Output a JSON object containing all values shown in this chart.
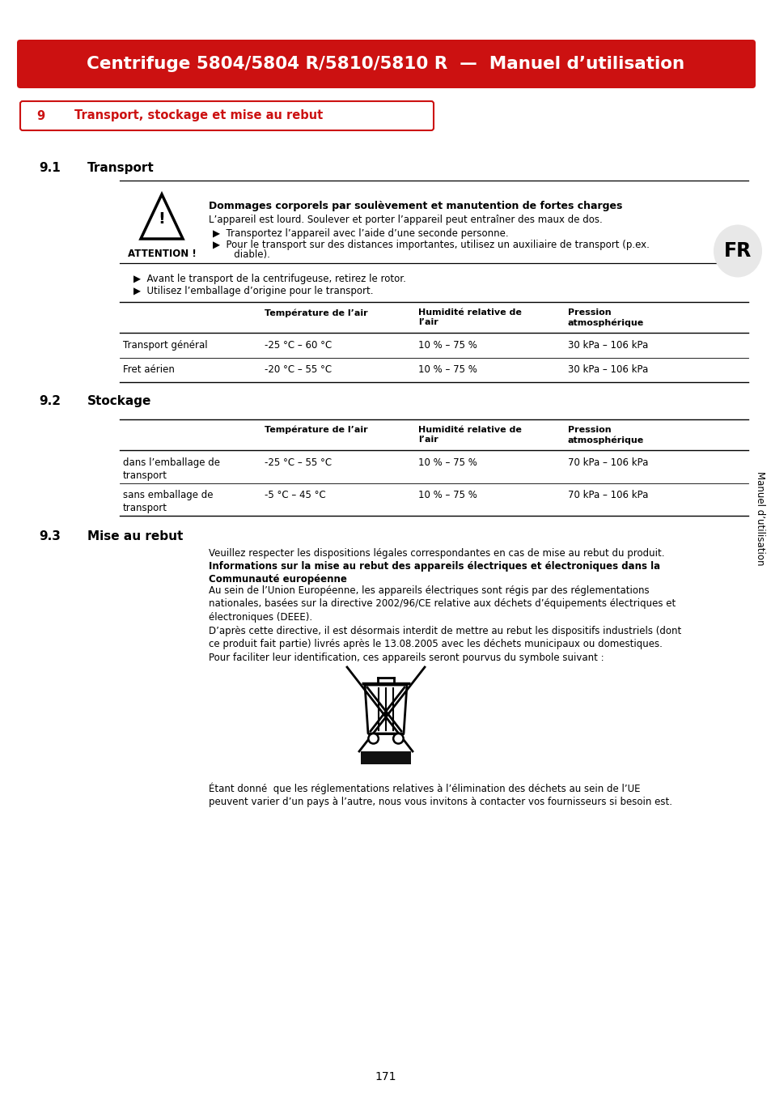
{
  "header_text": "Centrifuge 5804/5804 R/5810/5810 R  —  Manuel d’utilisation",
  "header_bg": "#cc1111",
  "header_text_color": "#ffffff",
  "section_badge_text": "9",
  "section_title": "Transport, stockage et mise au rebut",
  "section_badge_color": "#cc1111",
  "sub91": "9.1",
  "sub91_title": "Transport",
  "attention_title": "Dommages corporels par soulèvement et manutention de fortes charges",
  "attention_body1": "L’appareil est lourd. Soulever et porter l’appareil peut entraîner des maux de dos.",
  "attention_bullet1": "Transportez l’appareil avec l’aide d’une seconde personne.",
  "attention_bullet2a": "Pour le transport sur des distances importantes, utilisez un auxiliaire de transport (p.ex.",
  "attention_bullet2b": "   diable).",
  "attention_label": "ATTENTION !",
  "bullet_transport1": "Avant le transport de la centrifugeuse, retirez le rotor.",
  "bullet_transport2": "Utilisez l’emballage d’origine pour le transport.",
  "table1_headers": [
    "",
    "Température de l’air",
    "Humidité relative de\nl’air",
    "Pression\natmosphérique"
  ],
  "table1_rows": [
    [
      "Transport général",
      "-25 °C – 60 °C",
      "10 % – 75 %",
      "30 kPa – 106 kPa"
    ],
    [
      "Fret aérien",
      "-20 °C – 55 °C",
      "10 % – 75 %",
      "30 kPa – 106 kPa"
    ]
  ],
  "sub92": "9.2",
  "sub92_title": "Stockage",
  "table2_headers": [
    "",
    "Température de l’air",
    "Humidité relative de\nl’air",
    "Pression\natmosphérique"
  ],
  "table2_rows": [
    [
      "dans l’emballage de\ntransport",
      "-25 °C – 55 °C",
      "10 % – 75 %",
      "70 kPa – 106 kPa"
    ],
    [
      "sans emballage de\ntransport",
      "-5 °C – 45 °C",
      "10 % – 75 %",
      "70 kPa – 106 kPa"
    ]
  ],
  "sub93": "9.3",
  "sub93_title": "Mise au rebut",
  "mise_para1": "Veuillez respecter les dispositions légales correspondantes en cas de mise au rebut du produit.",
  "mise_bold": "Informations sur la mise au rebut des appareils électriques et électroniques dans la\nCommunauté européenne",
  "mise_para2": "Au sein de l’Union Européenne, les appareils électriques sont régis par des réglementations\nnationales, basées sur la directive 2002/96/CE relative aux déchets d’équipements électriques et\nélectroniques (DEEE).",
  "mise_para3": "D’après cette directive, il est désormais interdit de mettre au rebut les dispositifs industriels (dont\nce produit fait partie) livrés après le 13.08.2005 avec les déchets municipaux ou domestiques.\nPour faciliter leur identification, ces appareils seront pourvus du symbole suivant :",
  "mise_para4": "Étant donné  que les réglementations relatives à l’élimination des déchets au sein de l’UE\npeuvent varier d’un pays à l’autre, nous vous invitons à contacter vos fournisseurs si besoin est.",
  "fr_label": "FR",
  "sidebar_label": "Manuel d’utilisation",
  "page_number": "171",
  "bg_color": "#ffffff",
  "text_color": "#000000"
}
